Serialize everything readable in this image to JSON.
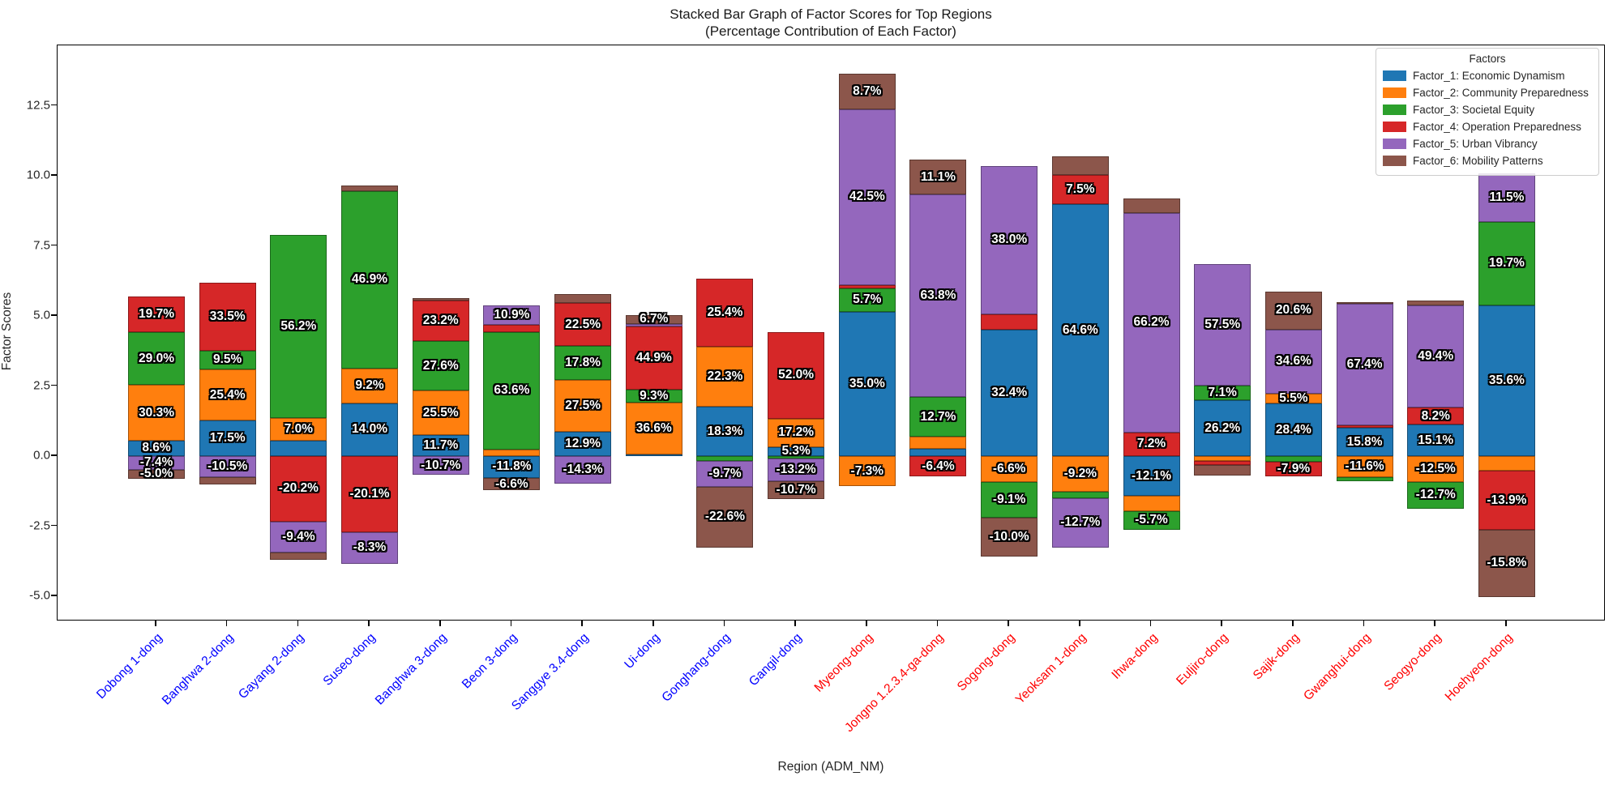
{
  "title": {
    "line1": "Stacked Bar Graph of Factor Scores for Top Regions",
    "line2": "(Percentage Contribution of Each Factor)"
  },
  "axes": {
    "y_label": "Factor Scores",
    "x_label": "Region (ADM_NM)",
    "y_ticks": [
      "12.5",
      "10.0",
      "7.5",
      "5.0",
      "2.5",
      "0.0",
      "-2.5",
      "-5.0"
    ],
    "x_tick_colors": {
      "blue": "#0000ff",
      "red": "#ff0000"
    }
  },
  "legend": {
    "title": "Factors",
    "items": [
      {
        "label": "Factor_1: Economic Dynamism",
        "color": "#1f77b4"
      },
      {
        "label": "Factor_2: Community Preparedness",
        "color": "#ff7f0e"
      },
      {
        "label": "Factor_3: Societal Equity",
        "color": "#2ca02c"
      },
      {
        "label": "Factor_4: Operation Preparedness",
        "color": "#d62728"
      },
      {
        "label": "Factor_5: Urban Vibrancy",
        "color": "#9467bd"
      },
      {
        "label": "Factor_6: Mobility Patterns",
        "color": "#8c564b"
      }
    ]
  },
  "chart_data": {
    "type": "bar",
    "stacked": true,
    "ylim": [
      -5.9,
      14.65
    ],
    "grid": false,
    "legend_position": "upper right",
    "factors": [
      "Factor_1",
      "Factor_2",
      "Factor_3",
      "Factor_4",
      "Factor_5",
      "Factor_6"
    ],
    "regions": [
      {
        "name": "Dobong 1-dong",
        "tick_color": "blue",
        "segments": [
          {
            "value": 0.56,
            "pct": 8.6
          },
          {
            "value": 1.97,
            "pct": 30.3
          },
          {
            "value": 1.89,
            "pct": 29.0
          },
          {
            "value": 1.28,
            "pct": 19.7
          },
          {
            "value": -0.48,
            "pct": -7.4
          },
          {
            "value": -0.33,
            "pct": -5.0
          }
        ]
      },
      {
        "name": "Banghwa 2-dong",
        "tick_color": "blue",
        "segments": [
          {
            "value": 1.26,
            "pct": 17.5
          },
          {
            "value": 1.83,
            "pct": 25.4
          },
          {
            "value": 0.68,
            "pct": 9.5
          },
          {
            "value": 2.41,
            "pct": 33.5
          },
          {
            "value": -0.76,
            "pct": -10.5
          },
          {
            "value": -0.26
          }
        ]
      },
      {
        "name": "Gayang 2-dong",
        "tick_color": "blue",
        "segments": [
          {
            "value": 0.56
          },
          {
            "value": 0.81,
            "pct": 7.0
          },
          {
            "value": 6.52,
            "pct": 56.2
          },
          {
            "value": -2.34,
            "pct": -20.2
          },
          {
            "value": -1.09,
            "pct": -9.4
          },
          {
            "value": -0.28
          }
        ]
      },
      {
        "name": "Suseo-dong",
        "tick_color": "blue",
        "segments": [
          {
            "value": 1.89,
            "pct": 14.0
          },
          {
            "value": 1.24,
            "pct": 9.2
          },
          {
            "value": 6.33,
            "pct": 46.9
          },
          {
            "value": -2.71,
            "pct": -20.1
          },
          {
            "value": -1.12,
            "pct": -8.3
          },
          {
            "value": 0.2
          }
        ]
      },
      {
        "name": "Banghwa 3-dong",
        "tick_color": "blue",
        "segments": [
          {
            "value": 0.74,
            "pct": 11.7
          },
          {
            "value": 1.61,
            "pct": 25.5
          },
          {
            "value": 1.74,
            "pct": 27.6
          },
          {
            "value": 1.46,
            "pct": 23.2
          },
          {
            "value": -0.67,
            "pct": -10.7
          },
          {
            "value": 0.08
          }
        ]
      },
      {
        "name": "Beon 3-dong",
        "tick_color": "blue",
        "segments": [
          {
            "value": -0.78,
            "pct": -11.8
          },
          {
            "value": 0.23
          },
          {
            "value": 4.2,
            "pct": 63.6
          },
          {
            "value": 0.24
          },
          {
            "value": 0.72,
            "pct": 10.9
          },
          {
            "value": -0.44,
            "pct": -6.6
          }
        ]
      },
      {
        "name": "Sanggye 3.4-dong",
        "tick_color": "blue",
        "segments": [
          {
            "value": 0.87,
            "pct": 12.9
          },
          {
            "value": 1.86,
            "pct": 27.5
          },
          {
            "value": 1.2,
            "pct": 17.8
          },
          {
            "value": 1.52,
            "pct": 22.5
          },
          {
            "value": -0.97,
            "pct": -14.3
          },
          {
            "value": 0.33
          }
        ]
      },
      {
        "name": "Ui-dong",
        "tick_color": "blue",
        "segments": [
          {
            "value": 0.06
          },
          {
            "value": 1.84,
            "pct": 36.6
          },
          {
            "value": 0.47,
            "pct": 9.3
          },
          {
            "value": 2.26,
            "pct": 44.9
          },
          {
            "value": 0.07
          },
          {
            "value": 0.34,
            "pct": 6.7
          }
        ]
      },
      {
        "name": "Gonghang-dong",
        "tick_color": "blue",
        "segments": [
          {
            "value": 1.76,
            "pct": 18.3
          },
          {
            "value": 2.14,
            "pct": 22.3
          },
          {
            "value": -0.16
          },
          {
            "value": 2.44,
            "pct": 25.4
          },
          {
            "value": -0.93,
            "pct": -9.7
          },
          {
            "value": -2.17,
            "pct": -22.6
          }
        ]
      },
      {
        "name": "Gangil-dong",
        "tick_color": "blue",
        "segments": [
          {
            "value": 0.32,
            "pct": 5.3
          },
          {
            "value": 1.02,
            "pct": 17.2
          },
          {
            "value": -0.1
          },
          {
            "value": 3.09,
            "pct": 52.0
          },
          {
            "value": -0.79,
            "pct": -13.2
          },
          {
            "value": -0.64,
            "pct": -10.7
          }
        ]
      },
      {
        "name": "Myeong-dong",
        "tick_color": "red",
        "segments": [
          {
            "value": 5.15,
            "pct": 35.0
          },
          {
            "value": -1.07,
            "pct": -7.3
          },
          {
            "value": 0.84,
            "pct": 5.7
          },
          {
            "value": 0.12
          },
          {
            "value": 6.25,
            "pct": 42.5
          },
          {
            "value": 1.28,
            "pct": 8.7
          }
        ]
      },
      {
        "name": "Jongno 1.2.3.4-ga-dong",
        "tick_color": "red",
        "segments": [
          {
            "value": 0.27
          },
          {
            "value": 0.41
          },
          {
            "value": 1.44,
            "pct": 12.7
          },
          {
            "value": -0.73,
            "pct": -6.4
          },
          {
            "value": 7.21,
            "pct": 63.8
          },
          {
            "value": 1.25,
            "pct": 11.1
          }
        ]
      },
      {
        "name": "Sogong-dong",
        "tick_color": "red",
        "segments": [
          {
            "value": 4.52,
            "pct": 32.4
          },
          {
            "value": -0.92,
            "pct": -6.6
          },
          {
            "value": -1.27,
            "pct": -9.1
          },
          {
            "value": 0.54
          },
          {
            "value": 5.3,
            "pct": 38.0
          },
          {
            "value": -1.4,
            "pct": -10.0
          }
        ]
      },
      {
        "name": "Yeoksam 1-dong",
        "tick_color": "red",
        "segments": [
          {
            "value": 8.98,
            "pct": 64.6
          },
          {
            "value": -1.28,
            "pct": -9.2
          },
          {
            "value": -0.21
          },
          {
            "value": 1.04,
            "pct": 7.5
          },
          {
            "value": -1.77,
            "pct": -12.7
          },
          {
            "value": 0.67
          }
        ]
      },
      {
        "name": "Ihwa-dong",
        "tick_color": "red",
        "segments": [
          {
            "value": -1.43,
            "pct": -12.1
          },
          {
            "value": -0.53
          },
          {
            "value": -0.67,
            "pct": -5.7
          },
          {
            "value": 0.85,
            "pct": 7.2
          },
          {
            "value": 7.81,
            "pct": 66.2
          },
          {
            "value": 0.52
          }
        ]
      },
      {
        "name": "Euljiro-dong",
        "tick_color": "red",
        "segments": [
          {
            "value": 1.98,
            "pct": 26.2
          },
          {
            "value": -0.18
          },
          {
            "value": 0.54,
            "pct": 7.1
          },
          {
            "value": -0.14
          },
          {
            "value": 4.34,
            "pct": 57.5
          },
          {
            "value": -0.38
          }
        ]
      },
      {
        "name": "Sajik-dong",
        "tick_color": "red",
        "segments": [
          {
            "value": 1.87,
            "pct": 28.4
          },
          {
            "value": 0.36,
            "pct": 5.5
          },
          {
            "value": -0.2
          },
          {
            "value": -0.52,
            "pct": -7.9
          },
          {
            "value": 2.28,
            "pct": 34.6
          },
          {
            "value": 1.36,
            "pct": 20.6
          }
        ]
      },
      {
        "name": "Gwanghui-dong",
        "tick_color": "red",
        "segments": [
          {
            "value": 1.01,
            "pct": 15.8
          },
          {
            "value": -0.74,
            "pct": -11.6
          },
          {
            "value": -0.15
          },
          {
            "value": 0.1
          },
          {
            "value": 4.31,
            "pct": 67.4
          },
          {
            "value": 0.08
          }
        ]
      },
      {
        "name": "Seogyo-dong",
        "tick_color": "red",
        "segments": [
          {
            "value": 1.12,
            "pct": 15.1
          },
          {
            "value": -0.93,
            "pct": -12.5
          },
          {
            "value": -0.94,
            "pct": -12.7
          },
          {
            "value": 0.61,
            "pct": 8.2
          },
          {
            "value": 3.66,
            "pct": 49.4
          },
          {
            "value": 0.16
          }
        ]
      },
      {
        "name": "Hoehyeon-dong",
        "tick_color": "red",
        "segments": [
          {
            "value": 5.38,
            "pct": 35.6
          },
          {
            "value": -0.53
          },
          {
            "value": 2.97,
            "pct": 19.7
          },
          {
            "value": -2.1,
            "pct": -13.9
          },
          {
            "value": 1.74,
            "pct": 11.5
          },
          {
            "value": -2.39,
            "pct": -15.8
          }
        ]
      }
    ]
  }
}
